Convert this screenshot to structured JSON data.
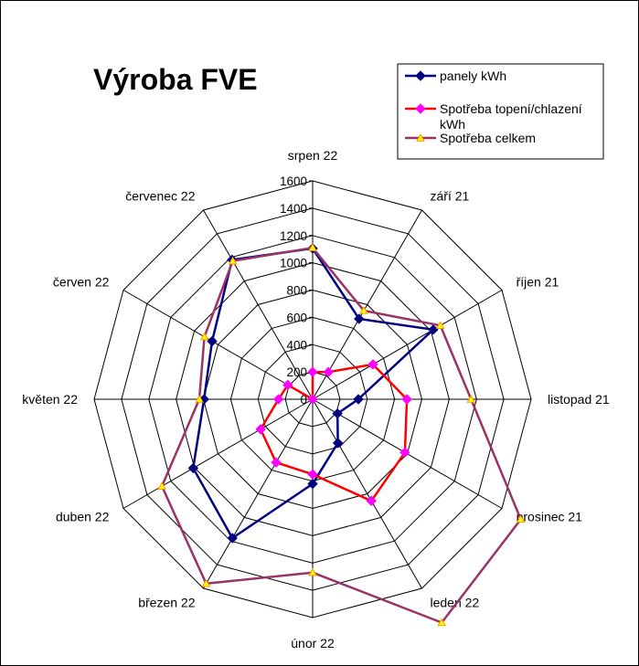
{
  "chart_data": {
    "type": "radar",
    "title": "Výroba FVE",
    "categories": [
      "srpen 22",
      "září 21",
      "říjen 21",
      "listopad 21",
      "prosinec 21",
      "leden 22",
      "únor 22",
      "březen 22",
      "duben 22",
      "květen 22",
      "červen 22",
      "červenec 22"
    ],
    "radial_ticks": [
      0,
      200,
      400,
      600,
      800,
      1000,
      1200,
      1400,
      1600
    ],
    "rmax": 1600,
    "legend_position": "top-right",
    "series": [
      {
        "name": "panely kWh",
        "color": "#000080",
        "marker": "diamond",
        "values": [
          1105,
          680,
          1020,
          335,
          210,
          370,
          620,
          1175,
          1010,
          795,
          850,
          1180
        ]
      },
      {
        "name": "Spotřeba topení/chlazení kWh",
        "color": "#ff0000",
        "marker_color": "#ff00ff",
        "marker": "diamond",
        "values": [
          200,
          230,
          510,
          690,
          780,
          860,
          550,
          535,
          440,
          250,
          210,
          0
        ]
      },
      {
        "name": "Spotřeba celkem",
        "color": "#993366",
        "marker_color": "#ff9900",
        "marker": "triangle",
        "values": [
          1110,
          750,
          1080,
          1160,
          1760,
          1890,
          1270,
          1560,
          1275,
          830,
          915,
          1170
        ]
      }
    ]
  }
}
